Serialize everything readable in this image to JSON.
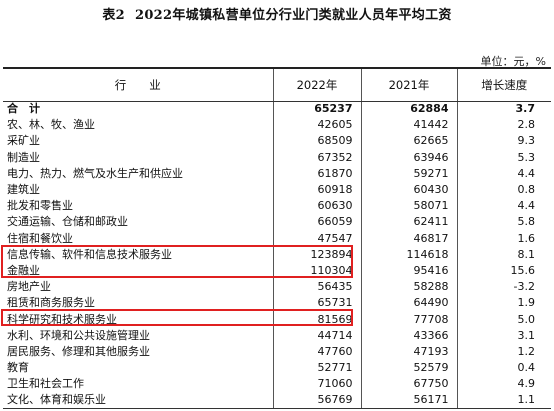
{
  "title": {
    "table_no": "表2",
    "text": "2022年城镇私营单位分行业门类就业人员年平均工资"
  },
  "unit": "单位：元，%",
  "headers": [
    "行　　业",
    "2022年",
    "2021年",
    "增长速度"
  ],
  "rows": [
    {
      "industry": "合　计",
      "y2022": "65237",
      "y2021": "62884",
      "growth": "3.7"
    },
    {
      "industry": "农、林、牧、渔业",
      "y2022": "42605",
      "y2021": "41442",
      "growth": "2.8"
    },
    {
      "industry": "采矿业",
      "y2022": "68509",
      "y2021": "62665",
      "growth": "9.3"
    },
    {
      "industry": "制造业",
      "y2022": "67352",
      "y2021": "63946",
      "growth": "5.3"
    },
    {
      "industry": "电力、热力、燃气及水生产和供应业",
      "y2022": "61870",
      "y2021": "59271",
      "growth": "4.4"
    },
    {
      "industry": "建筑业",
      "y2022": "60918",
      "y2021": "60430",
      "growth": "0.8"
    },
    {
      "industry": "批发和零售业",
      "y2022": "60630",
      "y2021": "58071",
      "growth": "4.4"
    },
    {
      "industry": "交通运输、仓储和邮政业",
      "y2022": "66059",
      "y2021": "62411",
      "growth": "5.8"
    },
    {
      "industry": "住宿和餐饮业",
      "y2022": "47547",
      "y2021": "46817",
      "growth": "1.6"
    },
    {
      "industry": "信息传输、软件和信息技术服务业",
      "y2022": "123894",
      "y2021": "114618",
      "growth": "8.1"
    },
    {
      "industry": "金融业",
      "y2022": "110304",
      "y2021": "95416",
      "growth": "15.6"
    },
    {
      "industry": "房地产业",
      "y2022": "56435",
      "y2021": "58288",
      "growth": "-3.2"
    },
    {
      "industry": "租赁和商务服务业",
      "y2022": "65731",
      "y2021": "64490",
      "growth": "1.9"
    },
    {
      "industry": "科学研究和技术服务业",
      "y2022": "81569",
      "y2021": "77708",
      "growth": "5.0"
    },
    {
      "industry": "水利、环境和公共设施管理业",
      "y2022": "44714",
      "y2021": "43366",
      "growth": "3.1"
    },
    {
      "industry": "居民服务、修理和其他服务业",
      "y2022": "47760",
      "y2021": "47193",
      "growth": "1.2"
    },
    {
      "industry": "教育",
      "y2022": "52771",
      "y2021": "52579",
      "growth": "0.4"
    },
    {
      "industry": "卫生和社会工作",
      "y2022": "71060",
      "y2021": "67750",
      "growth": "4.9"
    },
    {
      "industry": "文化、体育和娱乐业",
      "y2022": "56769",
      "y2021": "56171",
      "growth": "1.1"
    }
  ],
  "highlight_color": "#e02020"
}
